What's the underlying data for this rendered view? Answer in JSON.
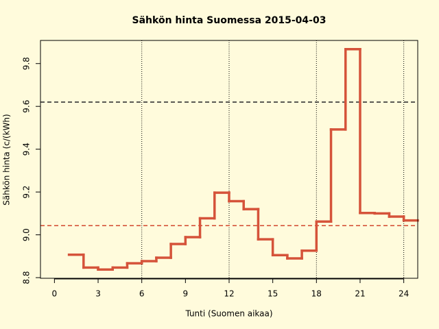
{
  "chart_data": {
    "type": "step",
    "title": "Sähkön hinta Suomessa 2015-04-03",
    "x_label": "Tunti (Suomen aikaa)",
    "y_label": "Sähkön hinta (c/(kWh)",
    "x": [
      1,
      2,
      3,
      4,
      5,
      6,
      7,
      8,
      9,
      10,
      11,
      12,
      13,
      14,
      15,
      16,
      17,
      18,
      19,
      20,
      21,
      22,
      23,
      24
    ],
    "series": [
      {
        "color": "#d5533a",
        "values": [
          8.907,
          8.847,
          8.838,
          8.847,
          8.867,
          8.877,
          8.893,
          8.957,
          8.989,
          9.077,
          9.197,
          9.157,
          9.12,
          8.979,
          8.905,
          8.89,
          8.926,
          9.062,
          9.492,
          9.867,
          9.102,
          9.1,
          9.085,
          9.067
        ]
      }
    ],
    "xlim": [
      -0.96,
      24.96
    ],
    "xticks": [
      0,
      3,
      6,
      9,
      12,
      15,
      18,
      21,
      24
    ],
    "ylim": [
      8.797,
      9.908
    ],
    "yticks": [
      {
        "value": 8.8,
        "label": "8.8"
      },
      {
        "value": 9.0,
        "label": "9.0"
      },
      {
        "value": 9.2,
        "label": "9.2"
      },
      {
        "value": 9.4,
        "label": "9.4"
      },
      {
        "value": 9.6,
        "label": "9.6"
      },
      {
        "value": 9.8,
        "label": "9.8"
      }
    ],
    "reference_lines": [
      {
        "value": 9.62,
        "color": "#333333"
      },
      {
        "value": 9.043,
        "color": "#d5533a"
      }
    ],
    "vertical_lines": [
      6,
      12,
      18,
      24
    ]
  }
}
